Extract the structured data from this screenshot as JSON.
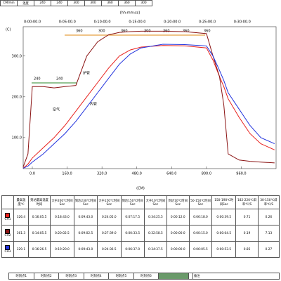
{
  "settings_strip": {
    "row_label": "CM/min",
    "sub_label": "温度",
    "zones": [
      "240",
      "240",
      "300",
      "300",
      "360",
      "360",
      "300"
    ]
  },
  "chart_data": {
    "type": "line",
    "y_label": "(C)",
    "x_label": "(CM)",
    "time_axis": {
      "label": "(hh:mm:ss)",
      "ticks": [
        "0:00:00.0",
        "0:05:00.0",
        "0:10:00.0",
        "0:15:00.0",
        "0:20:00.0",
        "0:25:00.0",
        "0:30:00.0"
      ]
    },
    "zone_labels": [
      "240",
      "240",
      "360",
      "300",
      "360",
      "300",
      "360",
      "360",
      "360"
    ],
    "annotations": [
      "空气",
      "炉管",
      "内管"
    ],
    "x": [
      -42,
      -20,
      0,
      50,
      100,
      150,
      200,
      250,
      300,
      350,
      400,
      450,
      500,
      600,
      700,
      800,
      830,
      860,
      880,
      900,
      950,
      1000,
      1050,
      1113
    ],
    "xlim": [
      -42,
      1120
    ],
    "xticks": [
      {
        "value": 0,
        "label": "0.0"
      },
      {
        "value": 160,
        "label": "160.0"
      },
      {
        "value": 320,
        "label": "320.0"
      },
      {
        "value": 480,
        "label": "480.0"
      },
      {
        "value": 640,
        "label": "640.0"
      },
      {
        "value": 800,
        "label": "800.0"
      },
      {
        "value": 960,
        "label": "960.0"
      }
    ],
    "ylim": [
      24,
      372
    ],
    "yticks": [
      {
        "value": 100,
        "label": "100.0"
      },
      {
        "value": 200,
        "label": "200.0"
      },
      {
        "value": 300,
        "label": "300.0"
      }
    ],
    "series": [
      {
        "name": "CH1",
        "color": "#e8201c",
        "values": [
          25,
          35,
          50,
          75,
          100,
          130,
          165,
          200,
          235,
          270,
          300,
          315,
          322,
          326,
          325,
          320,
          290,
          250,
          225,
          195,
          150,
          110,
          85,
          70
        ]
      },
      {
        "name": "CH2",
        "color": "#8b1414",
        "values": [
          28,
          60,
          225,
          225,
          222,
          225,
          228,
          300,
          335,
          352,
          358,
          360,
          361,
          361,
          360,
          355,
          300,
          250,
          180,
          60,
          45,
          42,
          40,
          38
        ]
      },
      {
        "name": "CH3",
        "color": "#2233dd",
        "values": [
          25,
          30,
          40,
          60,
          85,
          110,
          140,
          175,
          210,
          245,
          280,
          305,
          320,
          329,
          328,
          325,
          300,
          265,
          240,
          210,
          170,
          130,
          100,
          85
        ]
      }
    ]
  },
  "results": {
    "header": [
      "最高温度℃",
      "到达最高温度时间",
      "大于200℃时间Sec",
      "到达230℃时间Sec",
      "大于150℃时间Sec",
      "到达150℃时间Sec",
      "大于10℃时间Sec",
      "到达10℃时间Sec",
      "50-150℃时间Sec",
      "150-190℃时间Sec",
      "182-220℃斜率℃/S",
      "30-150℃斜率℃/S"
    ],
    "rows": [
      [
        "326.4",
        "0:16:05.5",
        "0:18:43.0",
        "0:09:43.0",
        "0:24:05.0",
        "0:07:17.5",
        "0:34:25.5",
        "0:00:12.0",
        "0:06:18.0",
        "0:00:39.5",
        "0.71",
        "0.26"
      ],
      [
        "361.3",
        "0:14:05.5",
        "0:20:02.5",
        "0:09:02.5",
        "0:27:39.0",
        "0:00:33.5",
        "0:32:58.5",
        "0:00:00.0",
        "0:00:15.0",
        "0:00:04.5",
        "0.19",
        "7.13"
      ],
      [
        "329.1",
        "0:16:26.5",
        "0:19:20.0",
        "0:09:43.0",
        "0:24:36.5",
        "0:06:37.0",
        "0:34:37.5",
        "0:00:00.0",
        "0:06:05.5",
        "0:00:53.5",
        "0.85",
        "0.27"
      ]
    ]
  },
  "footer": {
    "cells": [
      "时刻点1",
      "时刻点2",
      "时刻点3",
      "时刻点4",
      "时刻点5",
      "时刻点6"
    ],
    "note": "备注"
  }
}
